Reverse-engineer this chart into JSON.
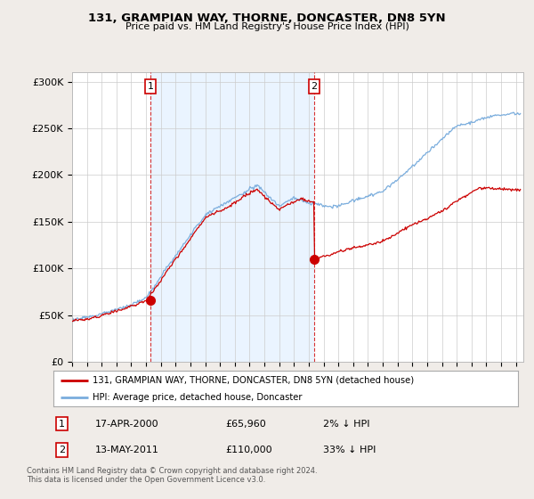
{
  "title": "131, GRAMPIAN WAY, THORNE, DONCASTER, DN8 5YN",
  "subtitle": "Price paid vs. HM Land Registry's House Price Index (HPI)",
  "yticks": [
    0,
    50000,
    100000,
    150000,
    200000,
    250000,
    300000
  ],
  "ytick_labels": [
    "£0",
    "£50K",
    "£100K",
    "£150K",
    "£200K",
    "£250K",
    "£300K"
  ],
  "ylim": [
    0,
    310000
  ],
  "xlim_start": 1995,
  "xlim_end": 2025.5,
  "sale1_x": 2000.29,
  "sale1_y": 65960,
  "sale2_x": 2011.37,
  "sale2_y": 110000,
  "legend_line1": "131, GRAMPIAN WAY, THORNE, DONCASTER, DN8 5YN (detached house)",
  "legend_line2": "HPI: Average price, detached house, Doncaster",
  "row1_date": "17-APR-2000",
  "row1_price": "£65,960",
  "row1_hpi": "2% ↓ HPI",
  "row2_date": "13-MAY-2011",
  "row2_price": "£110,000",
  "row2_hpi": "33% ↓ HPI",
  "footer": "Contains HM Land Registry data © Crown copyright and database right 2024.\nThis data is licensed under the Open Government Licence v3.0.",
  "hpi_color": "#7aaddd",
  "price_color": "#cc0000",
  "bg_color": "#f0ece8",
  "plot_bg": "#ffffff",
  "shade_color": "#ddeeff",
  "vline_color": "#cc0000"
}
